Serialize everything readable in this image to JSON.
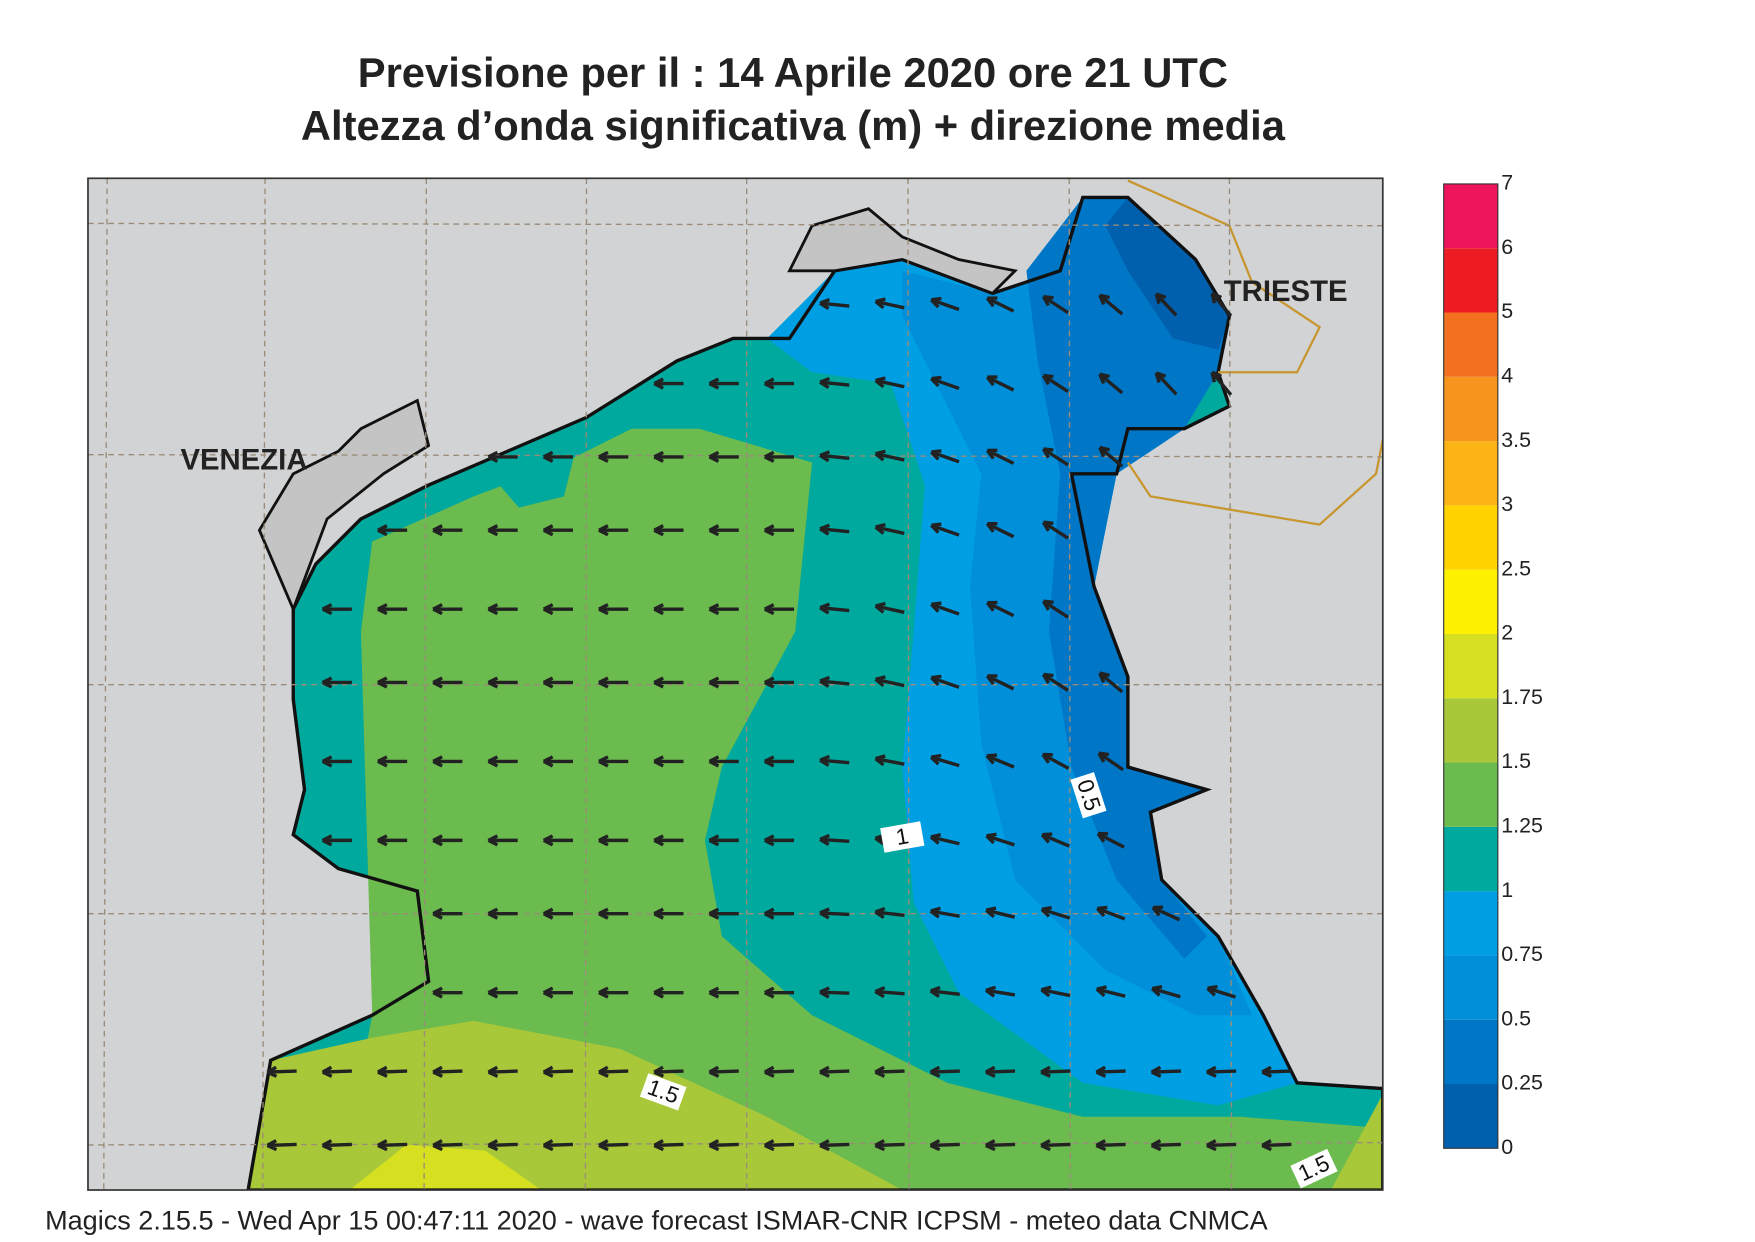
{
  "header": {
    "title_line1": "Previsione per il  :  14   Aprile  2020   ore 21 UTC",
    "title_line2": "Altezza d’onda significativa (m) + direzione media"
  },
  "map": {
    "places": [
      "VENEZIA",
      "TRIESTE"
    ],
    "contour_labels": [
      "1.5",
      "1",
      "0.5",
      "1.5"
    ]
  },
  "legend": {
    "ticks": [
      0,
      0.25,
      0.5,
      0.75,
      1,
      1.25,
      1.5,
      1.75,
      2,
      2.5,
      3,
      3.5,
      4,
      5,
      6,
      7
    ],
    "colors": [
      "#0060ae",
      "#0077c6",
      "#008fd8",
      "#009fe3",
      "#00a99d",
      "#6cbb4f",
      "#a8c83a",
      "#d6e021",
      "#fff200",
      "#ffd200",
      "#fcb315",
      "#f7941d",
      "#f37021",
      "#ed1c24",
      "#ed145b"
    ]
  },
  "footer": "Magics 2.15.5 - Wed Apr 15 00:47:11 2020 - wave forecast  ISMAR-CNR  ICPSM - meteo data   CNMCA"
}
